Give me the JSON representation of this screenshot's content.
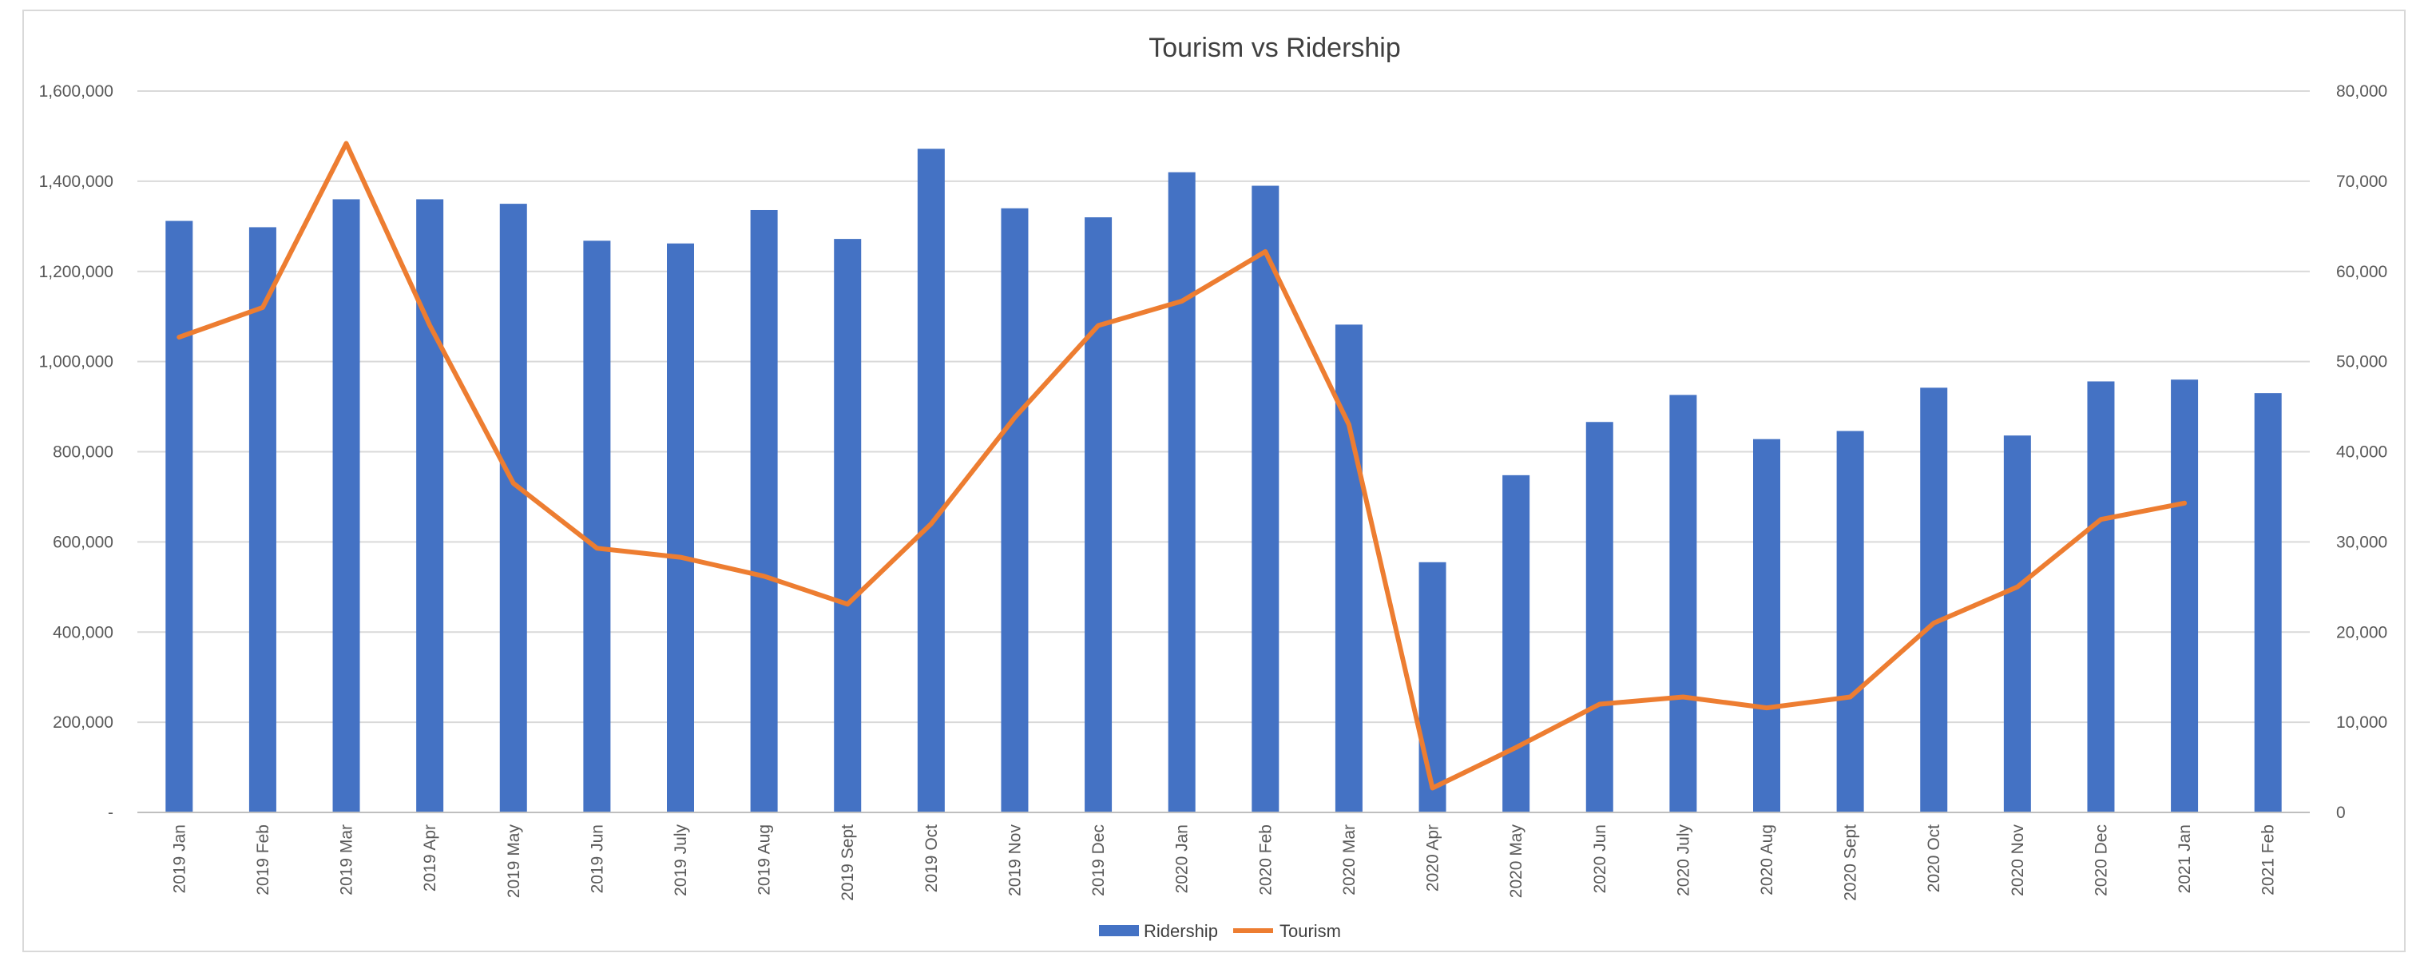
{
  "chart_data": {
    "type": "bar",
    "title": "Tourism vs Ridership",
    "categories": [
      "2019 Jan",
      "2019 Feb",
      "2019 Mar",
      "2019 Apr",
      "2019 May",
      "2019 Jun",
      "2019 July",
      "2019 Aug",
      "2019 Sept",
      "2019 Oct",
      "2019 Nov",
      "2019 Dec",
      "2020 Jan",
      "2020 Feb",
      "2020 Mar",
      "2020 Apr",
      "2020 May",
      "2020 Jun",
      "2020 July",
      "2020 Aug",
      "2020 Sept",
      "2020 Oct",
      "2020 Nov",
      "2020 Dec",
      "2021 Jan",
      "2021 Feb"
    ],
    "series": [
      {
        "name": "Ridership",
        "kind": "bar",
        "axis": "left",
        "color": "#4472C4",
        "values": [
          1312000,
          1298000,
          1360000,
          1360000,
          1350000,
          1268000,
          1262000,
          1336000,
          1272000,
          1472000,
          1340000,
          1320000,
          1420000,
          1390000,
          1082000,
          555000,
          748000,
          866000,
          926000,
          828000,
          846000,
          942000,
          836000,
          956000,
          960000,
          930000
        ]
      },
      {
        "name": "Tourism",
        "kind": "line",
        "axis": "right",
        "color": "#ED7D31",
        "values": [
          52700,
          56000,
          74200,
          54000,
          36500,
          29300,
          28300,
          26200,
          23100,
          32000,
          43800,
          54000,
          56700,
          62200,
          43000,
          2700,
          7200,
          12000,
          12800,
          11600,
          12800,
          21000,
          25000,
          32500,
          34300,
          null
        ]
      }
    ],
    "y_left": {
      "min": 0,
      "max": 1600000,
      "step": 200000,
      "tick_labels": [
        "-",
        "200,000",
        "400,000",
        "600,000",
        "800,000",
        "1,000,000",
        "1,200,000",
        "1,400,000",
        "1,600,000"
      ]
    },
    "y_right": {
      "min": 0,
      "max": 80000,
      "step": 10000,
      "tick_labels": [
        "0",
        "10,000",
        "20,000",
        "30,000",
        "40,000",
        "50,000",
        "60,000",
        "70,000",
        "80,000"
      ]
    },
    "grid": true,
    "legend_position": "bottom",
    "gridline_color": "#d9d9d9",
    "axis_line_color": "#bfbfbf"
  }
}
